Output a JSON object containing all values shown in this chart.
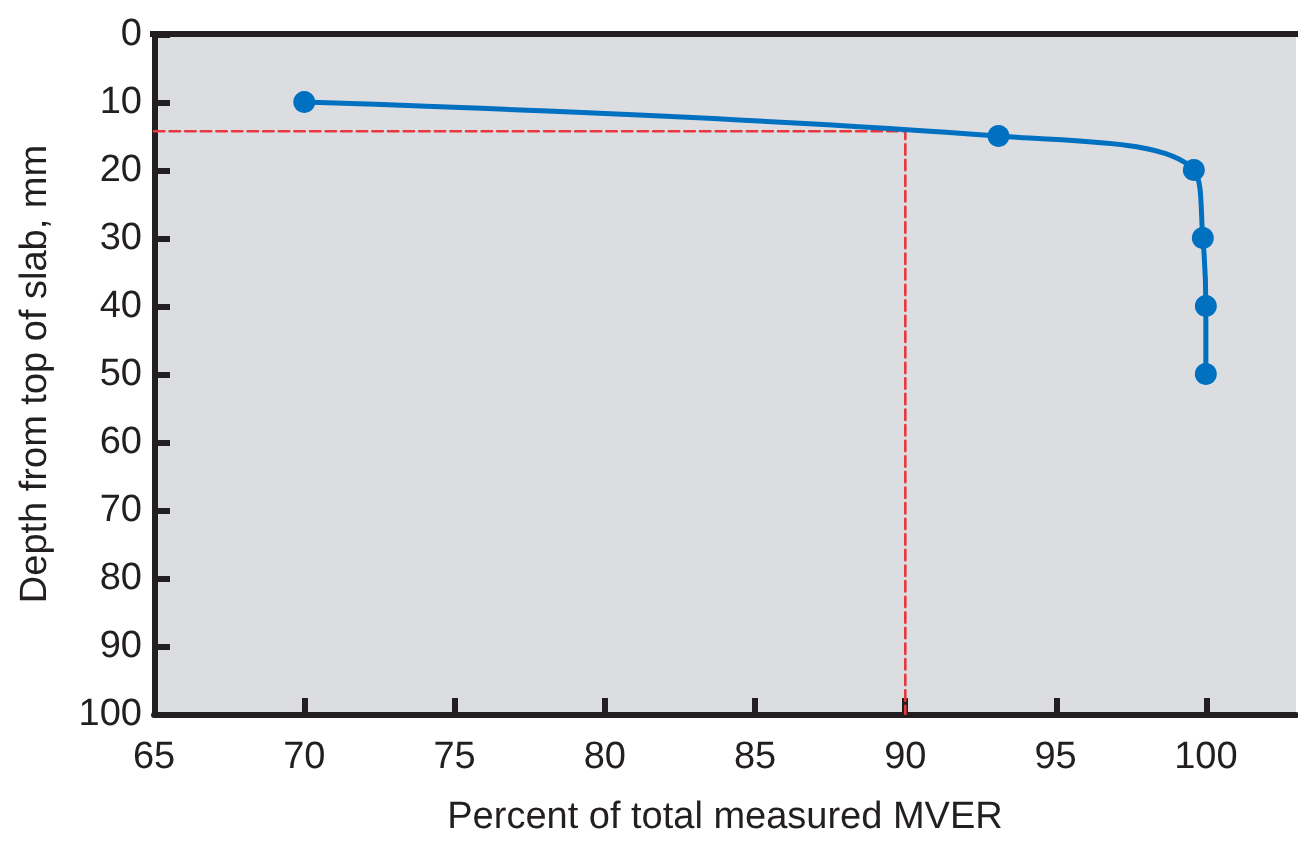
{
  "chart_data": {
    "type": "line",
    "xlabel": "Percent of total measured MVER",
    "ylabel": "Depth from top of slab, mm",
    "xlim": [
      65,
      103
    ],
    "xticks": [
      65,
      70,
      75,
      80,
      85,
      90,
      95,
      100
    ],
    "ylim": [
      100,
      0
    ],
    "yticks": [
      0,
      10,
      20,
      30,
      40,
      50,
      60,
      70,
      80,
      90,
      100
    ],
    "series": [
      {
        "color": "#0070c0",
        "marker": "circle",
        "line_style": "solid",
        "x": [
          70,
          93.1,
          99.6,
          99.9,
          100,
          100
        ],
        "values": [
          10,
          15,
          20,
          30,
          40,
          50
        ]
      },
      {
        "color": "#e8383d",
        "marker": "none",
        "line_style": "dashed",
        "x": [
          65,
          90,
          90
        ],
        "values": [
          14.3,
          14.3,
          100
        ]
      }
    ]
  }
}
